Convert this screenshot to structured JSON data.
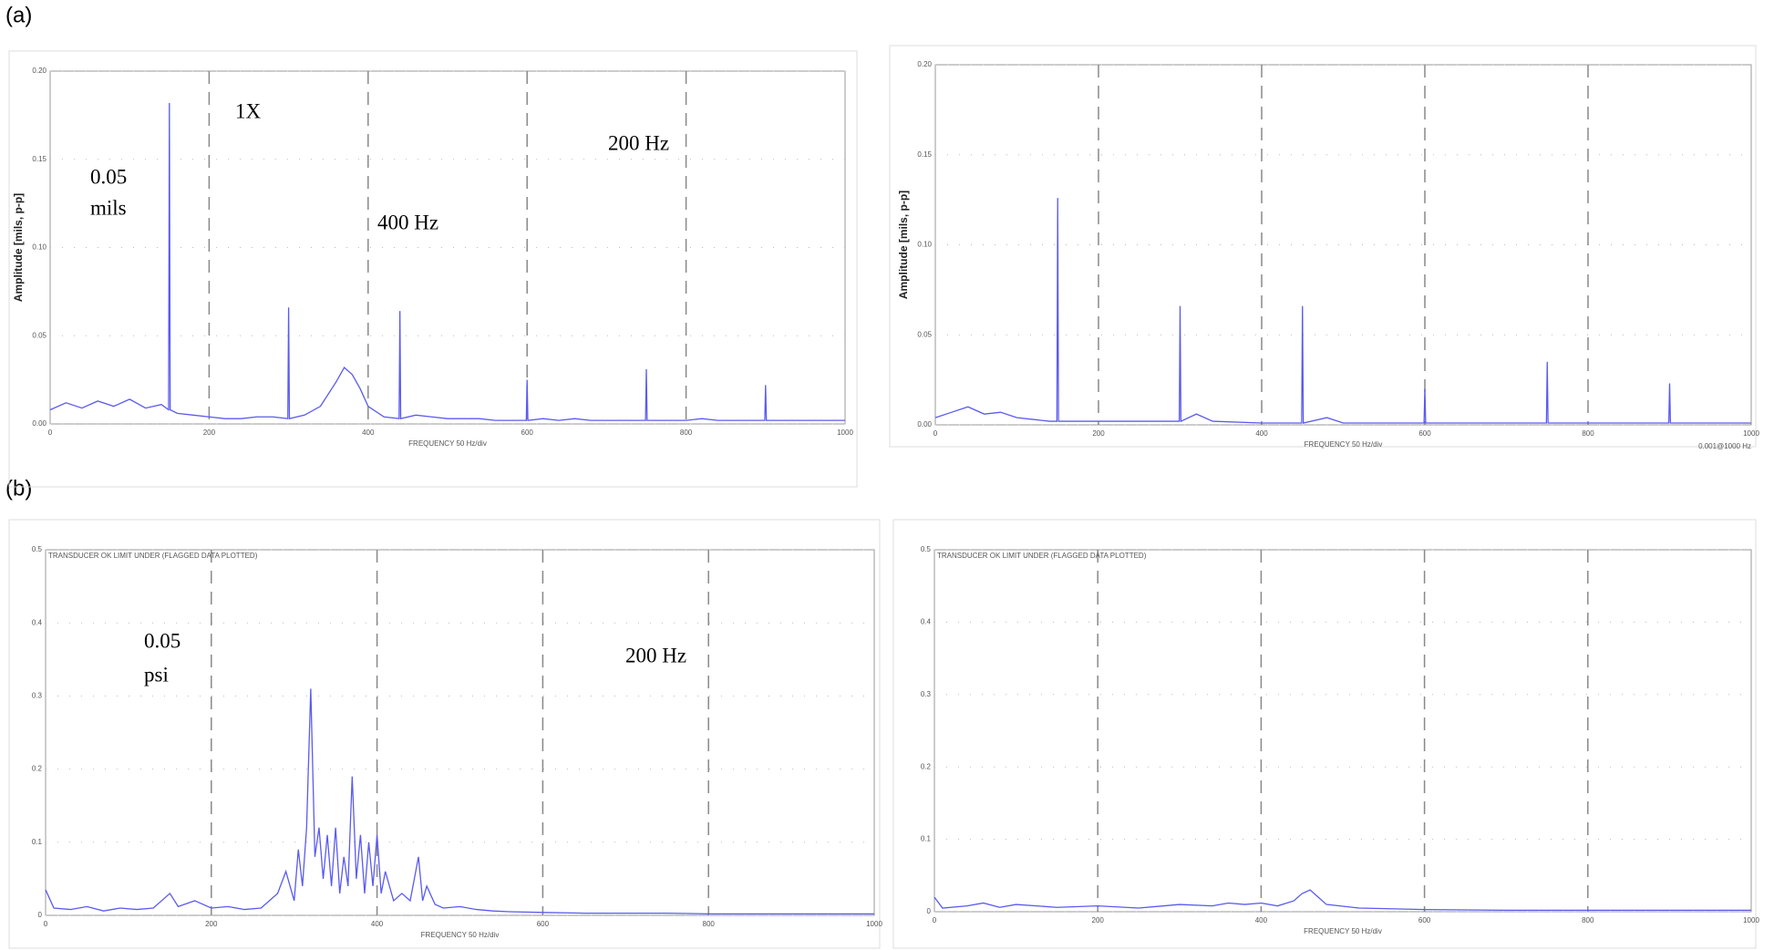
{
  "panels": [
    "(a)",
    "(b)"
  ],
  "chart_data": [
    {
      "type": "line",
      "y_label": "Amplitude [mils, p-p]",
      "x_label": "FREQUENCY 50 Hz/div",
      "annotations": [
        "1X",
        "0.05",
        "mils",
        "400 Hz",
        "200 Hz"
      ],
      "color": "#5a5af0",
      "xlim": [
        0,
        1000
      ],
      "ylim": [
        0,
        0.2
      ],
      "xticks": [
        0,
        200,
        400,
        600,
        800,
        1000
      ],
      "yticks": [
        {
          "value": 0,
          "label": "0.00"
        },
        {
          "value": 0.05,
          "label": "0.05"
        },
        {
          "value": 0.1,
          "label": "0.10"
        },
        {
          "value": 0.15,
          "label": "0.15"
        },
        {
          "value": 0.2,
          "label": "0.20"
        }
      ],
      "grid": true,
      "x": [
        0,
        20,
        40,
        60,
        80,
        100,
        120,
        140,
        149,
        150,
        151,
        160,
        180,
        200,
        220,
        240,
        260,
        280,
        299,
        300,
        301,
        320,
        340,
        360,
        370,
        380,
        390,
        400,
        420,
        439,
        440,
        441,
        460,
        480,
        500,
        520,
        540,
        560,
        580,
        599,
        600,
        601,
        620,
        640,
        660,
        680,
        700,
        720,
        740,
        749,
        750,
        751,
        770,
        800,
        820,
        840,
        860,
        880,
        899,
        900,
        901,
        920,
        940,
        960,
        980,
        1000
      ],
      "values": [
        0.008,
        0.012,
        0.009,
        0.013,
        0.01,
        0.014,
        0.009,
        0.011,
        0.008,
        0.182,
        0.008,
        0.006,
        0.005,
        0.004,
        0.003,
        0.003,
        0.004,
        0.004,
        0.003,
        0.066,
        0.003,
        0.005,
        0.01,
        0.024,
        0.032,
        0.028,
        0.02,
        0.01,
        0.004,
        0.003,
        0.064,
        0.003,
        0.005,
        0.004,
        0.003,
        0.003,
        0.003,
        0.002,
        0.002,
        0.002,
        0.025,
        0.002,
        0.003,
        0.002,
        0.003,
        0.002,
        0.002,
        0.002,
        0.002,
        0.002,
        0.031,
        0.002,
        0.002,
        0.002,
        0.003,
        0.002,
        0.002,
        0.002,
        0.002,
        0.022,
        0.002,
        0.002,
        0.002,
        0.002,
        0.002,
        0.002
      ]
    },
    {
      "type": "line",
      "y_label": "Amplitude [mils, p-p]",
      "x_label": "FREQUENCY 50 Hz/div",
      "note": "0.001@1000 Hz",
      "color": "#5a5af0",
      "xlim": [
        0,
        1000
      ],
      "ylim": [
        0,
        0.2
      ],
      "xticks": [
        0,
        200,
        400,
        600,
        800,
        1000
      ],
      "yticks": [
        {
          "value": 0,
          "label": "0.00"
        },
        {
          "value": 0.05,
          "label": "0.05"
        },
        {
          "value": 0.1,
          "label": "0.10"
        },
        {
          "value": 0.15,
          "label": "0.15"
        },
        {
          "value": 0.2,
          "label": "0.20"
        }
      ],
      "grid": true,
      "x": [
        0,
        20,
        40,
        60,
        80,
        100,
        120,
        140,
        149,
        150,
        151,
        180,
        220,
        260,
        299,
        300,
        301,
        320,
        340,
        400,
        449,
        450,
        451,
        480,
        500,
        560,
        599,
        600,
        601,
        650,
        700,
        749,
        750,
        751,
        800,
        850,
        899,
        900,
        901,
        950,
        1000
      ],
      "values": [
        0.004,
        0.007,
        0.01,
        0.006,
        0.007,
        0.004,
        0.003,
        0.002,
        0.002,
        0.126,
        0.002,
        0.002,
        0.002,
        0.002,
        0.002,
        0.066,
        0.002,
        0.006,
        0.002,
        0.001,
        0.001,
        0.066,
        0.001,
        0.004,
        0.001,
        0.001,
        0.001,
        0.02,
        0.001,
        0.001,
        0.001,
        0.001,
        0.035,
        0.001,
        0.001,
        0.001,
        0.001,
        0.023,
        0.001,
        0.001,
        0.001
      ]
    },
    {
      "type": "line",
      "header": "TRANSDUCER OK LIMIT UNDER (FLAGGED DATA PLOTTED)",
      "x_label": "FREQUENCY 50 Hz/div",
      "annotations": [
        "0.05",
        "psi",
        "200 Hz"
      ],
      "color": "#5a5af0",
      "xlim": [
        0,
        1000
      ],
      "ylim": [
        0,
        0.5
      ],
      "xticks": [
        0,
        200,
        400,
        600,
        800,
        1000
      ],
      "yticks": [
        0,
        0.1,
        0.2,
        0.3,
        0.4,
        0.5
      ],
      "grid": true,
      "x": [
        0,
        10,
        30,
        50,
        70,
        90,
        110,
        130,
        150,
        160,
        180,
        200,
        220,
        240,
        260,
        280,
        290,
        300,
        305,
        310,
        315,
        320,
        325,
        330,
        335,
        340,
        345,
        350,
        355,
        360,
        365,
        370,
        375,
        380,
        385,
        390,
        395,
        400,
        405,
        410,
        420,
        430,
        440,
        450,
        455,
        460,
        470,
        480,
        500,
        520,
        540,
        560,
        600,
        650,
        700,
        750,
        800,
        850,
        900,
        950,
        1000
      ],
      "values": [
        0.035,
        0.01,
        0.008,
        0.012,
        0.006,
        0.01,
        0.008,
        0.01,
        0.03,
        0.012,
        0.02,
        0.01,
        0.012,
        0.008,
        0.01,
        0.03,
        0.06,
        0.02,
        0.09,
        0.04,
        0.12,
        0.31,
        0.08,
        0.12,
        0.05,
        0.11,
        0.04,
        0.12,
        0.03,
        0.08,
        0.04,
        0.19,
        0.05,
        0.11,
        0.03,
        0.1,
        0.04,
        0.11,
        0.03,
        0.06,
        0.02,
        0.03,
        0.02,
        0.08,
        0.02,
        0.04,
        0.015,
        0.01,
        0.012,
        0.008,
        0.006,
        0.005,
        0.004,
        0.003,
        0.003,
        0.003,
        0.002,
        0.002,
        0.002,
        0.002,
        0.002
      ]
    },
    {
      "type": "line",
      "header": "TRANSDUCER OK LIMIT UNDER (FLAGGED DATA PLOTTED)",
      "x_label": "FREQUENCY 50 Hz/div",
      "color": "#5a5af0",
      "xlim": [
        0,
        1000
      ],
      "ylim": [
        0,
        0.5
      ],
      "xticks": [
        0,
        200,
        400,
        600,
        800,
        1000
      ],
      "yticks": [
        0,
        0.1,
        0.2,
        0.3,
        0.4,
        0.5
      ],
      "grid": true,
      "x": [
        0,
        10,
        40,
        60,
        80,
        100,
        150,
        200,
        250,
        300,
        340,
        360,
        380,
        400,
        420,
        440,
        450,
        460,
        470,
        480,
        520,
        600,
        700,
        800,
        900,
        1000
      ],
      "values": [
        0.02,
        0.005,
        0.008,
        0.012,
        0.006,
        0.01,
        0.006,
        0.008,
        0.005,
        0.01,
        0.008,
        0.012,
        0.01,
        0.012,
        0.008,
        0.015,
        0.025,
        0.03,
        0.02,
        0.01,
        0.005,
        0.003,
        0.002,
        0.002,
        0.002,
        0.002
      ]
    }
  ]
}
